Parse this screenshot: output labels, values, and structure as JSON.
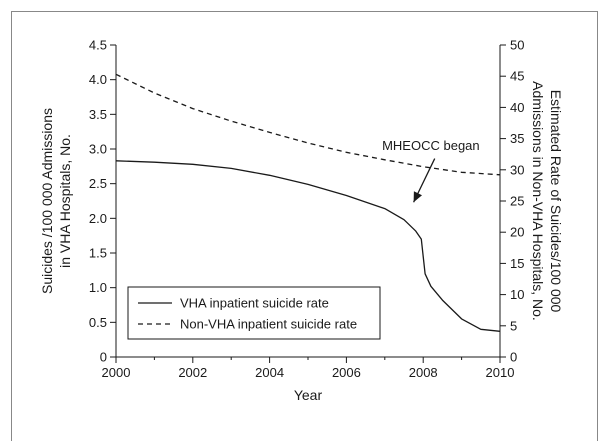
{
  "chart_data": {
    "type": "line",
    "xlabel": "Year",
    "ylabel_left": "Suicides /100 000 Admissions in VHA Hospitals, No.",
    "ylabel_left_lines": [
      "Suicides /100 000 Admissions",
      "in VHA Hospitals, No."
    ],
    "ylabel_right": "Estimated Rate of Suicides/100 000 Admissions in Non-VHA Hospitals, No.",
    "ylabel_right_lines": [
      "Estimated Rate of Suicides/100 000",
      "Admissions in Non-VHA Hospitals, No."
    ],
    "xlim": [
      2000,
      2010
    ],
    "ylim_left": [
      0,
      4.5
    ],
    "ylim_right": [
      0,
      50
    ],
    "x_ticks": [
      2000,
      2002,
      2004,
      2006,
      2008,
      2010
    ],
    "x_tick_labels": [
      "2000",
      "2002",
      "2004",
      "2006",
      "2008",
      "2010"
    ],
    "y_left_ticks": [
      0,
      0.5,
      1.0,
      1.5,
      2.0,
      2.5,
      3.0,
      3.5,
      4.0,
      4.5
    ],
    "y_left_tick_labels": [
      "0",
      "0.5",
      "1.0",
      "1.5",
      "2.0",
      "2.5",
      "3.0",
      "3.5",
      "4.0",
      "4.5"
    ],
    "y_right_ticks": [
      0,
      5,
      10,
      15,
      20,
      25,
      30,
      35,
      40,
      45,
      50
    ],
    "y_right_tick_labels": [
      "0",
      "5",
      "10",
      "15",
      "20",
      "25",
      "30",
      "35",
      "40",
      "45",
      "50"
    ],
    "series": [
      {
        "name": "VHA inpatient suicide rate",
        "axis": "left",
        "style": "solid",
        "x": [
          2000,
          2001,
          2002,
          2003,
          2004,
          2005,
          2006,
          2007,
          2007.5,
          2007.8,
          2007.95,
          2008,
          2008.05,
          2008.2,
          2008.5,
          2009,
          2009.5,
          2010
        ],
        "y": [
          2.83,
          2.81,
          2.78,
          2.72,
          2.62,
          2.49,
          2.33,
          2.14,
          1.98,
          1.82,
          1.7,
          1.45,
          1.2,
          1.02,
          0.82,
          0.55,
          0.4,
          0.37
        ]
      },
      {
        "name": "Non-VHA inpatient suicide rate",
        "axis": "right",
        "style": "dashed",
        "x": [
          2000,
          2001,
          2002,
          2003,
          2004,
          2005,
          2006,
          2007,
          2008,
          2009,
          2010
        ],
        "y": [
          45.3,
          42.3,
          39.8,
          37.8,
          36.0,
          34.3,
          32.8,
          31.6,
          30.5,
          29.6,
          29.2
        ]
      }
    ],
    "annotation": {
      "text": "MHEOCC began",
      "text_x": 2008.2,
      "text_y_right": 33.2,
      "arrow_from_x": 2008.3,
      "arrow_from_y_right": 31.8,
      "arrow_to_x": 2007.75,
      "arrow_to_y_right": 24.8
    },
    "legend": {
      "placement": "bottom-left"
    },
    "grid": false
  }
}
